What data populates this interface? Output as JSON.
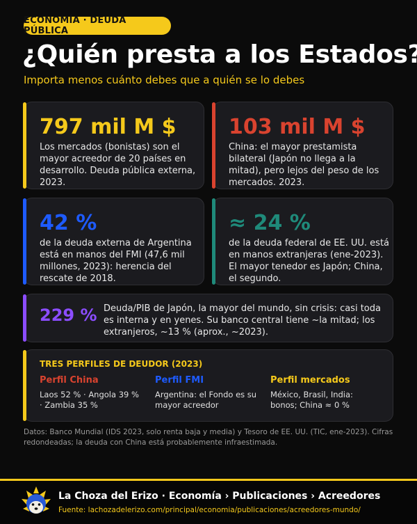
{
  "header": {
    "tag": "ECONOMÍA · DEUDA PÚBLICA",
    "title": "¿Quién presta a los Estados?",
    "subtitle": "Importa menos cuánto debes que a quién se lo debes"
  },
  "cards": [
    {
      "value": "797 mil M $",
      "text": "Los mercados (bonistas) son el mayor acreedor de 20 países en desarrollo. Deuda pública externa, 2023.",
      "color": "#f5c91b"
    },
    {
      "value": "103 mil M $",
      "text": "China: el mayor prestamista bilateral (Japón no llega a la mitad), pero lejos del peso de los mercados. 2023.",
      "color": "#d9432f"
    },
    {
      "value": "42 %",
      "text": "de la deuda externa de Argentina está en manos del FMI (47,6 mil millones, 2023): herencia del rescate de 2018.",
      "color": "#1e5bff"
    },
    {
      "value": "≈ 24 %",
      "text": "de la deuda federal de EE. UU. está en manos extranjeras (ene-2023). El mayor tenedor es Japón; China, el segundo.",
      "color": "#1f8a7a"
    },
    {
      "value": "229 %",
      "text": "Deuda/PIB de Japón, la mayor del mundo, sin crisis: casi toda es interna y en yenes. Su banco central tiene ~la mitad; los extranjeros, ~13 % (aprox., ~2023).",
      "color": "#8b4dff"
    }
  ],
  "profiles": {
    "title": "TRES PERFILES DE DEUDOR (2023)",
    "items": [
      {
        "heading": "Perfil China",
        "text": "Laos 52 % · Angola 39 % · Zambia 35 %",
        "color": "#d9432f"
      },
      {
        "heading": "Perfil FMI",
        "text": "Argentina: el Fondo es su mayor acreedor",
        "color": "#1e5bff"
      },
      {
        "heading": "Perfil mercados",
        "text": "México, Brasil, India: bonos; China ≈ 0 %",
        "color": "#f5c91b"
      }
    ],
    "accent": "#f5c91b"
  },
  "sources": "Datos: Banco Mundial (IDS 2023, solo renta baja y media) y Tesoro de EE. UU. (TIC, ene-2023). Cifras redondeadas; la deuda con China está probablemente infraestimada.",
  "footer": {
    "brand": "La Choza del Erizo · Economía › Publicaciones › Acreedores",
    "url": "Fuente: lachozadelerizo.com/principal/economia/publicaciones/acreedores-mundo/",
    "logo_icon": "hedgehog-icon"
  }
}
